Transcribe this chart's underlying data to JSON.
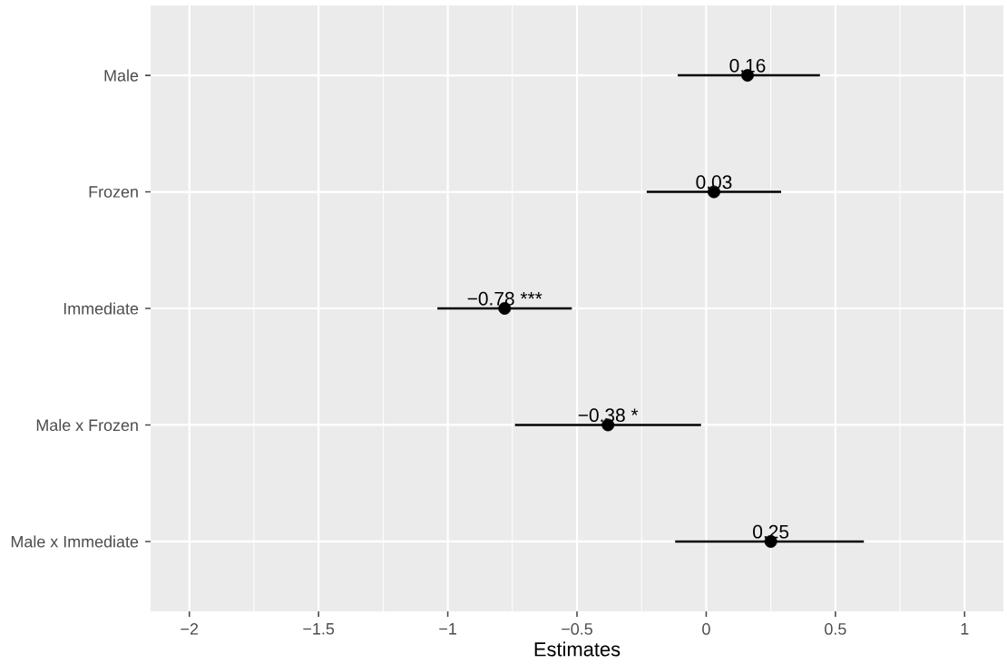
{
  "chart_data": {
    "type": "scatter",
    "orientation": "horizontal",
    "categories": [
      "Male",
      "Frozen",
      "Immediate",
      "Male x Frozen",
      "Male x Immediate"
    ],
    "values": [
      0.16,
      0.03,
      -0.78,
      -0.38,
      0.25
    ],
    "errors": [
      [
        -0.11,
        0.44
      ],
      [
        -0.23,
        0.29
      ],
      [
        -1.04,
        -0.52
      ],
      [
        -0.74,
        -0.02
      ],
      [
        -0.12,
        0.61
      ]
    ],
    "value_labels": [
      "0.16",
      "0.03",
      "−0.78 ***",
      "−0.38 *",
      "0.25"
    ],
    "color": "#000000",
    "marker": "circle",
    "xlabel": "Estimates",
    "xlim": [
      -2.15,
      1.15
    ],
    "xticks": [
      {
        "value": -2,
        "label": "−2"
      },
      {
        "value": -1.5,
        "label": "−1.5"
      },
      {
        "value": -1,
        "label": "−1"
      },
      {
        "value": -0.5,
        "label": "−0.5"
      },
      0,
      0.5,
      1
    ],
    "grid": true
  }
}
